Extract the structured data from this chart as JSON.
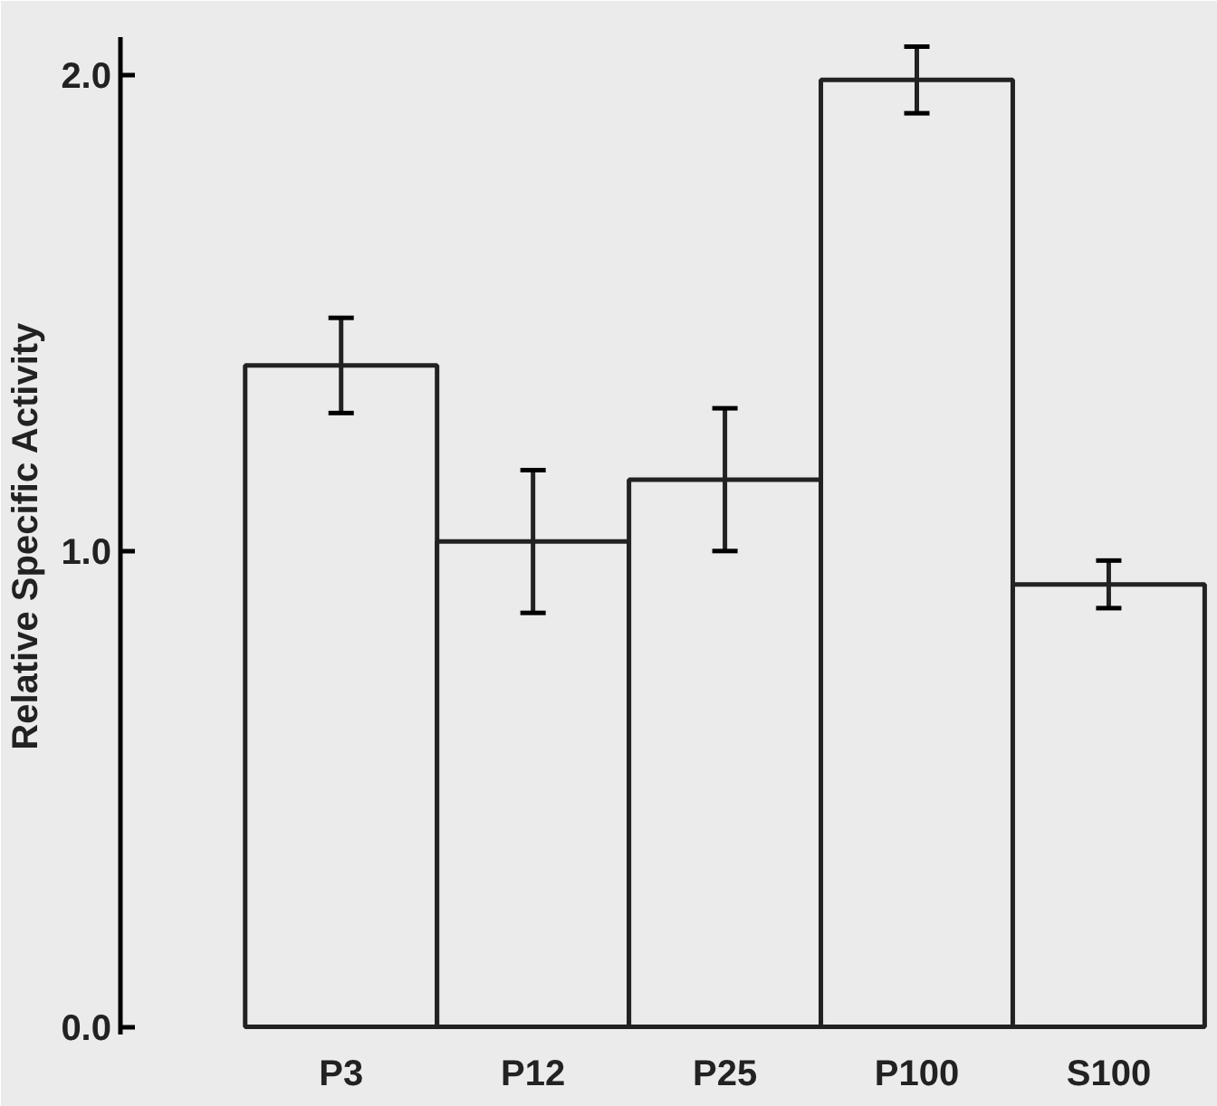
{
  "chart_data": {
    "type": "bar",
    "ylabel": "Relative Specific Activity",
    "categories": [
      "P3",
      "P12",
      "P25",
      "P100",
      "S100"
    ],
    "values": [
      1.39,
      1.02,
      1.15,
      1.99,
      0.93
    ],
    "errors": [
      0.1,
      0.15,
      0.15,
      0.07,
      0.05
    ],
    "color": "#ebebeb",
    "ylim": [
      0,
      2
    ],
    "yticks": [
      {
        "value": 0,
        "label": "0.0"
      },
      {
        "value": 1,
        "label": "1.0"
      },
      {
        "value": 2,
        "label": "2.0"
      }
    ],
    "grid": false
  }
}
